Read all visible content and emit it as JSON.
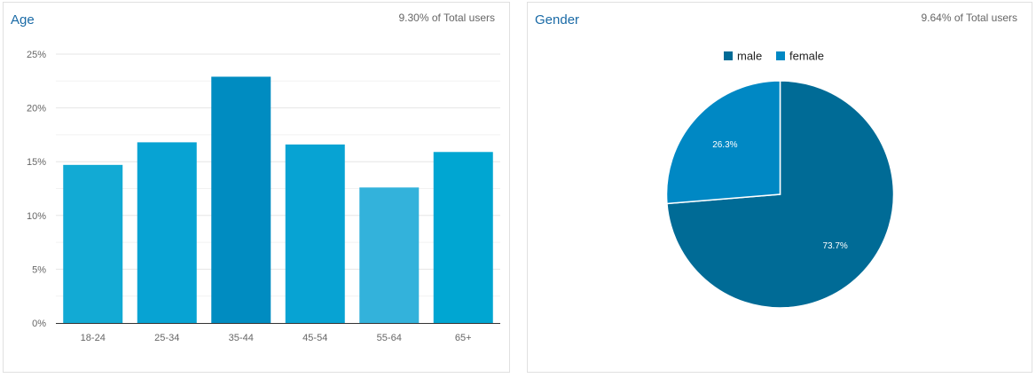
{
  "age_card": {
    "title": "Age",
    "subtitle": "9.30% of Total users"
  },
  "gender_card": {
    "title": "Gender",
    "subtitle": "9.64% of Total users"
  },
  "chart_data": [
    {
      "type": "bar",
      "title": "Age",
      "categories": [
        "18-24",
        "25-34",
        "35-44",
        "45-54",
        "55-64",
        "65+"
      ],
      "values": [
        14.7,
        16.8,
        22.9,
        16.6,
        12.6,
        15.9
      ],
      "colors": [
        "#12aad4",
        "#07a3d3",
        "#008cc1",
        "#07a3d3",
        "#33b2db",
        "#00a6d2"
      ],
      "ylim": [
        0,
        25
      ],
      "yticks": [
        0,
        5,
        10,
        15,
        20,
        25
      ],
      "ytick_labels": [
        "0%",
        "5%",
        "10%",
        "15%",
        "20%",
        "25%"
      ],
      "grid": true
    },
    {
      "type": "pie",
      "title": "Gender",
      "labels": [
        "male",
        "female"
      ],
      "values": [
        73.7,
        26.3
      ],
      "value_labels": [
        "73.7%",
        "26.3%"
      ],
      "colors": [
        "#006b96",
        "#0088c4"
      ],
      "legend_position": "top-center"
    }
  ]
}
